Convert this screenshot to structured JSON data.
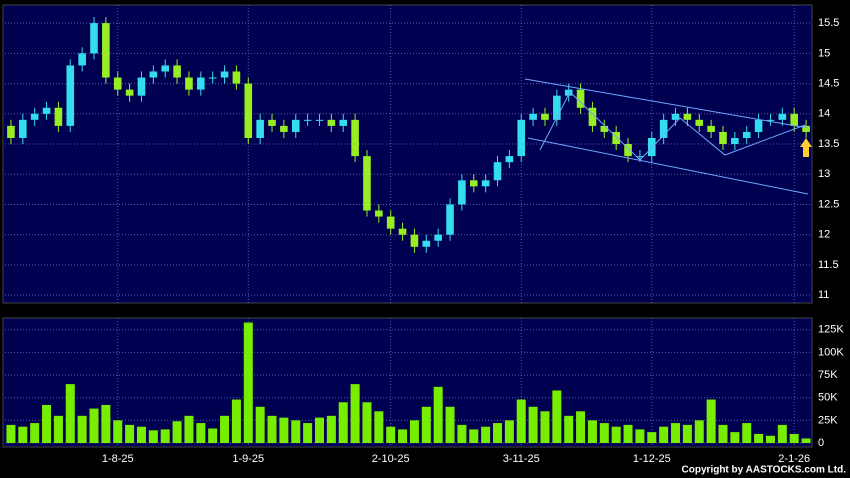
{
  "chart_data": {
    "type": "candlestick",
    "categories": [
      null,
      null,
      null,
      null,
      null,
      null,
      null,
      null,
      null,
      "1-8-25",
      null,
      null,
      null,
      null,
      null,
      null,
      null,
      null,
      null,
      null,
      "1-9-25",
      null,
      null,
      null,
      null,
      null,
      null,
      null,
      null,
      null,
      null,
      null,
      "2-10-25",
      null,
      null,
      null,
      null,
      null,
      null,
      null,
      null,
      null,
      null,
      "3-11-25",
      null,
      null,
      null,
      null,
      null,
      null,
      null,
      null,
      null,
      null,
      "1-12-25",
      null,
      null,
      null,
      null,
      null,
      null,
      null,
      null,
      null,
      null,
      null,
      "2-1-26",
      null
    ],
    "open": [
      13.8,
      13.6,
      13.9,
      14.0,
      14.1,
      13.8,
      14.8,
      15.0,
      15.5,
      14.6,
      14.4,
      14.3,
      14.6,
      14.7,
      14.8,
      14.6,
      14.4,
      14.6,
      14.6,
      14.7,
      14.5,
      13.6,
      13.9,
      13.8,
      13.7,
      13.9,
      13.9,
      13.9,
      13.8,
      13.9,
      13.3,
      12.4,
      12.3,
      12.1,
      12.0,
      11.8,
      11.9,
      12.0,
      12.5,
      12.9,
      12.8,
      12.9,
      13.2,
      13.3,
      13.9,
      14.0,
      13.9,
      14.3,
      14.4,
      14.1,
      13.8,
      13.7,
      13.5,
      13.3,
      13.3,
      13.6,
      13.9,
      14.0,
      13.9,
      13.8,
      13.7,
      13.5,
      13.6,
      13.7,
      13.9,
      13.9,
      14.0,
      13.8
    ],
    "high": [
      13.9,
      14.0,
      14.1,
      14.2,
      14.2,
      14.9,
      15.1,
      15.6,
      15.6,
      14.7,
      14.5,
      14.7,
      14.8,
      14.9,
      14.9,
      14.7,
      14.7,
      14.7,
      14.8,
      14.8,
      14.6,
      14.0,
      14.0,
      13.9,
      14.0,
      14.0,
      14.0,
      14.0,
      14.0,
      14.0,
      13.4,
      12.5,
      12.4,
      12.2,
      12.1,
      12.0,
      12.1,
      12.6,
      13.0,
      13.0,
      13.0,
      13.3,
      13.4,
      14.0,
      14.1,
      14.1,
      14.4,
      14.5,
      14.5,
      14.2,
      13.9,
      13.8,
      13.6,
      13.4,
      13.7,
      14.0,
      14.1,
      14.1,
      14.0,
      13.9,
      13.8,
      13.7,
      13.8,
      14.0,
      14.0,
      14.1,
      14.1,
      13.9
    ],
    "low": [
      13.5,
      13.5,
      13.8,
      13.9,
      13.7,
      13.7,
      14.7,
      14.9,
      14.5,
      14.3,
      14.2,
      14.2,
      14.5,
      14.6,
      14.5,
      14.3,
      14.3,
      14.5,
      14.5,
      14.4,
      13.5,
      13.5,
      13.7,
      13.6,
      13.6,
      13.8,
      13.8,
      13.7,
      13.7,
      13.2,
      12.3,
      12.2,
      12.0,
      11.9,
      11.7,
      11.7,
      11.8,
      11.9,
      12.4,
      12.7,
      12.7,
      12.8,
      13.1,
      13.2,
      13.8,
      13.8,
      13.8,
      14.2,
      14.0,
      13.7,
      13.6,
      13.4,
      13.2,
      13.2,
      13.2,
      13.5,
      13.8,
      13.8,
      13.7,
      13.6,
      13.4,
      13.4,
      13.5,
      13.6,
      13.8,
      13.8,
      13.7,
      13.6
    ],
    "close": [
      13.6,
      13.9,
      14.0,
      14.1,
      13.8,
      14.8,
      15.0,
      15.5,
      14.6,
      14.4,
      14.3,
      14.6,
      14.7,
      14.8,
      14.6,
      14.4,
      14.6,
      14.6,
      14.7,
      14.5,
      13.6,
      13.9,
      13.8,
      13.7,
      13.9,
      13.9,
      13.9,
      13.8,
      13.9,
      13.3,
      12.4,
      12.3,
      12.1,
      12.0,
      11.8,
      11.9,
      12.0,
      12.5,
      12.9,
      12.8,
      12.9,
      13.2,
      13.3,
      13.9,
      14.0,
      13.9,
      14.3,
      14.4,
      14.1,
      13.8,
      13.7,
      13.5,
      13.3,
      13.3,
      13.6,
      13.9,
      14.0,
      13.9,
      13.8,
      13.7,
      13.5,
      13.6,
      13.7,
      13.9,
      13.9,
      14.0,
      13.8,
      13.7
    ],
    "up_color": "#33ddee",
    "down_color": "#99ee22",
    "ylim": [
      10.87,
      15.8
    ],
    "yticks": [
      15.5,
      15,
      14.5,
      14,
      13.5,
      13,
      12.5,
      12,
      11.5,
      11
    ],
    "grid": true,
    "volume": {
      "type": "bar",
      "color": "#77ee00",
      "values": [
        20000,
        18000,
        22000,
        42000,
        30000,
        65000,
        30000,
        38000,
        42000,
        25000,
        20000,
        18000,
        14000,
        15000,
        24000,
        30000,
        22000,
        16000,
        30000,
        48000,
        133000,
        40000,
        30000,
        28000,
        25000,
        22000,
        28000,
        30000,
        45000,
        65000,
        45000,
        35000,
        18000,
        15000,
        25000,
        40000,
        62000,
        40000,
        20000,
        15000,
        18000,
        22000,
        25000,
        48000,
        40000,
        35000,
        58000,
        30000,
        35000,
        25000,
        22000,
        18000,
        20000,
        15000,
        12000,
        18000,
        22000,
        20000,
        25000,
        48000,
        20000,
        12000,
        22000,
        10000,
        8000,
        20000,
        10000,
        5000
      ],
      "ylim": [
        0,
        138000
      ],
      "yticks": [
        {
          "value": 125000,
          "label": "125K"
        },
        {
          "value": 100000,
          "label": "100K"
        },
        {
          "value": 75000,
          "label": "75K"
        },
        {
          "value": 50000,
          "label": "50K"
        },
        {
          "value": 25000,
          "label": "25K"
        },
        0
      ]
    },
    "footer": "Copyright by AASTOCKS.com Ltd."
  }
}
